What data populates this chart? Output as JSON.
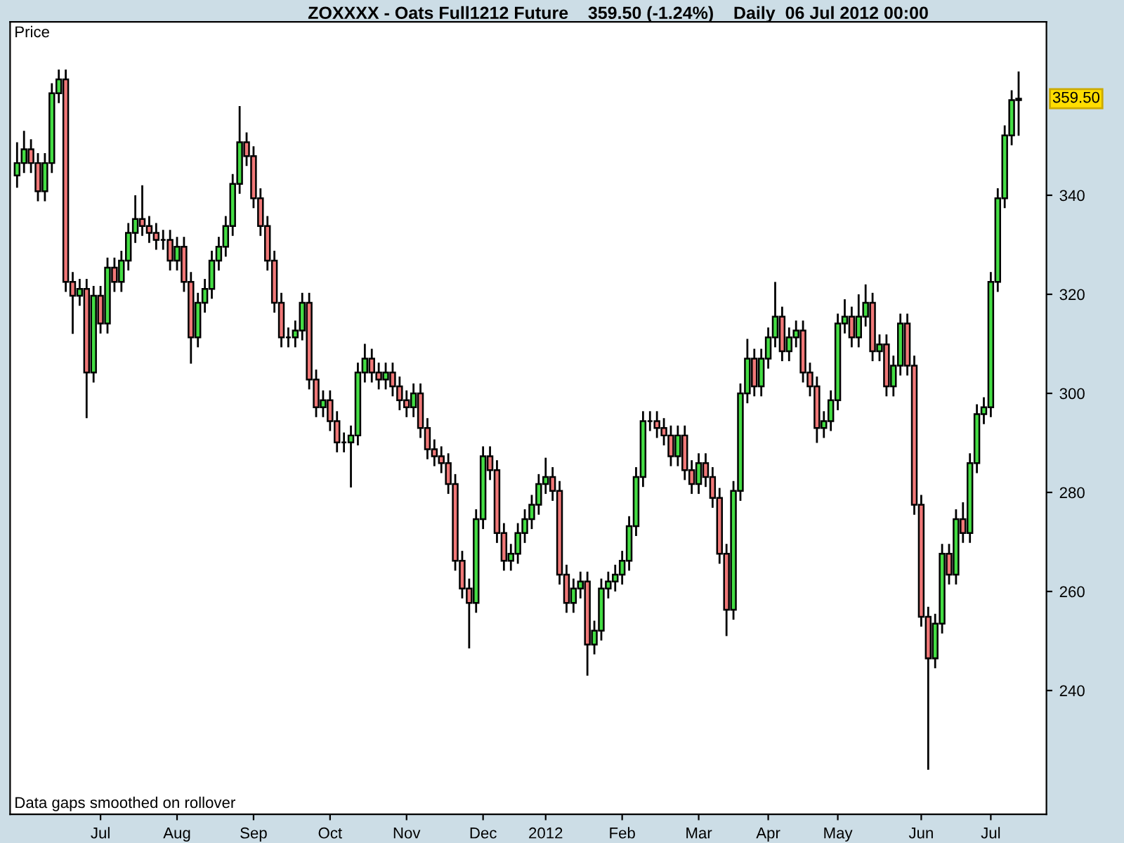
{
  "chart_data": {
    "type": "candlestick",
    "title": "ZOXXXX - Oats Full1212 Future    359.50 (-1.24%)    Daily  06 Jul 2012 00:00",
    "ylabel": "Price",
    "annotations": [
      "Data gaps smoothed on rollover",
      "359.50"
    ],
    "categories": [
      null,
      null,
      null,
      null,
      null,
      null,
      null,
      null,
      null,
      null,
      null,
      null,
      "Jul",
      null,
      null,
      null,
      null,
      null,
      null,
      null,
      null,
      null,
      null,
      "Aug",
      null,
      null,
      null,
      null,
      null,
      null,
      null,
      null,
      null,
      null,
      "Sep",
      null,
      null,
      null,
      null,
      null,
      null,
      null,
      null,
      null,
      null,
      "Oct",
      null,
      null,
      null,
      null,
      null,
      null,
      null,
      null,
      null,
      null,
      "Nov",
      null,
      null,
      null,
      null,
      null,
      null,
      null,
      null,
      null,
      null,
      "Dec",
      null,
      null,
      null,
      null,
      null,
      null,
      null,
      null,
      "2012",
      null,
      null,
      null,
      null,
      null,
      null,
      null,
      null,
      null,
      null,
      "Feb",
      null,
      null,
      null,
      null,
      null,
      null,
      null,
      null,
      null,
      null,
      "Mar",
      null,
      null,
      null,
      null,
      null,
      null,
      null,
      null,
      null,
      "Apr",
      null,
      null,
      null,
      null,
      null,
      null,
      null,
      null,
      null,
      "May",
      null,
      null,
      null,
      null,
      null,
      null,
      null,
      null,
      null,
      null,
      null,
      "Jun",
      null,
      null,
      null,
      null,
      null,
      null,
      null,
      null,
      null,
      "Jul",
      null,
      null,
      null,
      null
    ],
    "ohlc": [
      [
        344.0,
        350.7,
        341.5,
        346.5
      ],
      [
        346.5,
        353.0,
        344.5,
        349.3
      ],
      [
        349.3,
        351.3,
        344.5,
        346.5
      ],
      [
        346.5,
        348.5,
        338.8,
        340.8
      ],
      [
        340.8,
        348.5,
        338.8,
        346.5
      ],
      [
        346.5,
        362.6,
        344.5,
        360.6
      ],
      [
        360.6,
        365.4,
        358.6,
        363.4
      ],
      [
        363.4,
        365.4,
        320.5,
        322.5
      ],
      [
        322.5,
        324.5,
        312.0,
        319.7
      ],
      [
        319.7,
        323.1,
        317.7,
        321.1
      ],
      [
        321.1,
        323.1,
        295.0,
        304.2
      ],
      [
        304.2,
        321.7,
        302.2,
        319.7
      ],
      [
        319.7,
        321.7,
        312.1,
        314.1
      ],
      [
        314.1,
        327.4,
        312.1,
        325.4
      ],
      [
        325.4,
        327.4,
        320.5,
        322.5
      ],
      [
        322.5,
        328.8,
        320.5,
        326.8
      ],
      [
        326.8,
        334.4,
        324.8,
        332.4
      ],
      [
        332.4,
        340.0,
        330.4,
        335.2
      ],
      [
        335.2,
        342.0,
        331.8,
        333.8
      ],
      [
        333.8,
        335.8,
        330.4,
        332.4
      ],
      [
        332.4,
        334.4,
        329.0,
        331.0
      ],
      [
        331.0,
        333.0,
        329.0,
        331.0
      ],
      [
        331.0,
        333.0,
        324.8,
        326.8
      ],
      [
        326.8,
        331.6,
        324.8,
        329.6
      ],
      [
        329.6,
        331.6,
        320.5,
        322.5
      ],
      [
        322.5,
        324.5,
        306.0,
        311.3
      ],
      [
        311.3,
        320.3,
        309.3,
        318.3
      ],
      [
        318.3,
        323.1,
        316.3,
        321.1
      ],
      [
        321.1,
        328.8,
        319.1,
        326.8
      ],
      [
        326.8,
        331.6,
        324.8,
        329.6
      ],
      [
        329.6,
        335.8,
        327.6,
        333.8
      ],
      [
        333.8,
        344.3,
        331.8,
        342.3
      ],
      [
        342.3,
        358.0,
        340.3,
        350.7
      ],
      [
        350.7,
        352.7,
        345.9,
        347.9
      ],
      [
        347.9,
        349.9,
        337.4,
        339.4
      ],
      [
        339.4,
        341.4,
        331.8,
        333.8
      ],
      [
        333.8,
        335.8,
        324.8,
        326.8
      ],
      [
        326.8,
        328.8,
        316.3,
        318.3
      ],
      [
        318.3,
        320.3,
        309.3,
        311.3
      ],
      [
        311.3,
        313.3,
        309.3,
        311.3
      ],
      [
        311.3,
        314.7,
        309.3,
        312.7
      ],
      [
        312.7,
        320.3,
        310.7,
        318.3
      ],
      [
        318.3,
        320.3,
        300.8,
        302.8
      ],
      [
        302.8,
        304.8,
        295.2,
        297.2
      ],
      [
        297.2,
        300.6,
        295.2,
        298.6
      ],
      [
        298.6,
        300.6,
        292.4,
        294.4
      ],
      [
        294.4,
        296.4,
        288.1,
        290.1
      ],
      [
        290.1,
        292.1,
        288.1,
        290.1
      ],
      [
        290.1,
        293.5,
        281.0,
        291.5
      ],
      [
        291.5,
        306.2,
        289.5,
        304.2
      ],
      [
        304.2,
        310.0,
        302.2,
        307.0
      ],
      [
        307.0,
        309.0,
        302.2,
        304.2
      ],
      [
        304.2,
        306.2,
        300.8,
        302.8
      ],
      [
        302.8,
        306.2,
        300.8,
        304.2
      ],
      [
        304.2,
        306.2,
        299.4,
        301.4
      ],
      [
        301.4,
        303.4,
        296.6,
        298.6
      ],
      [
        298.6,
        300.6,
        295.2,
        297.2
      ],
      [
        297.2,
        302.0,
        295.2,
        300.0
      ],
      [
        300.0,
        302.0,
        291.0,
        293.0
      ],
      [
        293.0,
        295.0,
        286.7,
        288.7
      ],
      [
        288.7,
        290.7,
        285.3,
        287.3
      ],
      [
        287.3,
        289.3,
        283.9,
        285.9
      ],
      [
        285.9,
        287.9,
        279.7,
        281.7
      ],
      [
        281.7,
        283.7,
        264.2,
        266.2
      ],
      [
        266.2,
        268.2,
        258.6,
        260.6
      ],
      [
        260.6,
        262.6,
        248.5,
        257.7
      ],
      [
        257.7,
        276.6,
        255.7,
        274.6
      ],
      [
        274.6,
        289.3,
        272.6,
        287.3
      ],
      [
        287.3,
        289.3,
        282.5,
        284.5
      ],
      [
        284.5,
        286.5,
        269.8,
        271.8
      ],
      [
        271.8,
        273.8,
        264.2,
        266.2
      ],
      [
        266.2,
        269.6,
        264.2,
        267.6
      ],
      [
        267.6,
        273.8,
        265.6,
        271.8
      ],
      [
        271.8,
        276.6,
        269.8,
        274.6
      ],
      [
        274.6,
        279.5,
        272.6,
        277.5
      ],
      [
        277.5,
        283.7,
        275.5,
        281.7
      ],
      [
        281.7,
        287.0,
        279.7,
        283.1
      ],
      [
        283.1,
        285.1,
        278.3,
        280.3
      ],
      [
        280.3,
        282.3,
        261.4,
        263.4
      ],
      [
        263.4,
        265.4,
        255.7,
        257.7
      ],
      [
        257.7,
        262.6,
        255.7,
        260.6
      ],
      [
        260.6,
        264.0,
        258.6,
        262.0
      ],
      [
        262.0,
        264.0,
        243.0,
        249.3
      ],
      [
        249.3,
        254.1,
        247.3,
        252.1
      ],
      [
        252.1,
        262.6,
        250.1,
        260.6
      ],
      [
        260.6,
        264.0,
        258.6,
        262.0
      ],
      [
        262.0,
        265.4,
        260.0,
        263.4
      ],
      [
        263.4,
        268.2,
        261.4,
        266.2
      ],
      [
        266.2,
        275.2,
        264.2,
        273.2
      ],
      [
        273.2,
        285.1,
        271.2,
        283.1
      ],
      [
        283.1,
        296.4,
        281.1,
        294.4
      ],
      [
        294.4,
        296.4,
        292.4,
        294.4
      ],
      [
        294.4,
        296.4,
        291.0,
        293.0
      ],
      [
        293.0,
        295.0,
        289.5,
        291.5
      ],
      [
        291.5,
        293.5,
        285.3,
        287.3
      ],
      [
        287.3,
        293.5,
        285.3,
        291.5
      ],
      [
        291.5,
        293.5,
        282.5,
        284.5
      ],
      [
        284.5,
        286.5,
        279.7,
        281.7
      ],
      [
        281.7,
        287.9,
        279.7,
        285.9
      ],
      [
        285.9,
        287.9,
        281.1,
        283.1
      ],
      [
        283.1,
        285.1,
        276.9,
        278.9
      ],
      [
        278.9,
        280.9,
        265.6,
        267.6
      ],
      [
        267.6,
        269.6,
        251.0,
        256.3
      ],
      [
        256.3,
        282.3,
        254.3,
        280.3
      ],
      [
        280.3,
        302.0,
        278.3,
        300.0
      ],
      [
        300.0,
        311.0,
        298.0,
        307.0
      ],
      [
        307.0,
        309.0,
        299.4,
        301.4
      ],
      [
        301.4,
        309.0,
        299.4,
        307.0
      ],
      [
        307.0,
        313.3,
        305.0,
        311.3
      ],
      [
        311.3,
        322.5,
        309.3,
        315.5
      ],
      [
        315.5,
        317.5,
        306.5,
        308.5
      ],
      [
        308.5,
        313.3,
        306.5,
        311.3
      ],
      [
        311.3,
        314.7,
        309.3,
        312.7
      ],
      [
        312.7,
        314.7,
        302.2,
        304.2
      ],
      [
        304.2,
        306.2,
        299.4,
        301.4
      ],
      [
        301.4,
        303.4,
        290.0,
        293.0
      ],
      [
        293.0,
        296.4,
        291.0,
        294.4
      ],
      [
        294.4,
        300.6,
        292.4,
        298.6
      ],
      [
        298.6,
        316.1,
        296.6,
        314.1
      ],
      [
        314.1,
        319.0,
        312.1,
        315.5
      ],
      [
        315.5,
        317.5,
        309.3,
        311.3
      ],
      [
        311.3,
        320.0,
        309.3,
        315.5
      ],
      [
        315.5,
        322.0,
        313.5,
        318.3
      ],
      [
        318.3,
        320.3,
        306.5,
        308.5
      ],
      [
        308.5,
        311.9,
        306.5,
        309.9
      ],
      [
        309.9,
        311.9,
        299.4,
        301.4
      ],
      [
        301.4,
        307.6,
        299.4,
        305.6
      ],
      [
        305.6,
        316.1,
        303.6,
        314.1
      ],
      [
        314.1,
        316.1,
        303.6,
        305.6
      ],
      [
        305.6,
        307.6,
        275.5,
        277.5
      ],
      [
        277.5,
        279.5,
        252.9,
        254.9
      ],
      [
        254.9,
        256.9,
        224.0,
        246.5
      ],
      [
        246.5,
        255.5,
        244.5,
        253.5
      ],
      [
        253.5,
        269.6,
        251.5,
        267.6
      ],
      [
        267.6,
        269.6,
        261.4,
        263.4
      ],
      [
        263.4,
        276.6,
        261.4,
        274.6
      ],
      [
        274.6,
        278.0,
        269.8,
        271.8
      ],
      [
        271.8,
        287.9,
        269.8,
        285.9
      ],
      [
        285.9,
        297.8,
        283.9,
        295.8
      ],
      [
        295.8,
        299.2,
        293.8,
        297.2
      ],
      [
        297.2,
        324.5,
        295.2,
        322.5
      ],
      [
        322.5,
        341.4,
        320.5,
        339.4
      ],
      [
        339.4,
        354.1,
        337.4,
        352.1
      ],
      [
        352.1,
        361.2,
        350.1,
        359.2
      ],
      [
        359.2,
        365.0,
        352.0,
        359.5
      ]
    ],
    "colors": [
      "#44dd44",
      "#44dd44",
      "#f07878",
      "#f07878",
      "#44dd44",
      "#44dd44",
      "#44dd44",
      "#f07878",
      "#f07878",
      "#44dd44",
      "#f07878",
      "#44dd44",
      "#f07878",
      "#44dd44",
      "#f07878",
      "#44dd44",
      "#44dd44",
      "#44dd44",
      "#f07878",
      "#f07878",
      "#f07878",
      "#000000",
      "#f07878",
      "#44dd44",
      "#f07878",
      "#f07878",
      "#44dd44",
      "#44dd44",
      "#44dd44",
      "#44dd44",
      "#44dd44",
      "#44dd44",
      "#44dd44",
      "#f07878",
      "#f07878",
      "#f07878",
      "#f07878",
      "#f07878",
      "#f07878",
      "#000000",
      "#44dd44",
      "#44dd44",
      "#f07878",
      "#f07878",
      "#44dd44",
      "#f07878",
      "#f07878",
      "#000000",
      "#44dd44",
      "#44dd44",
      "#44dd44",
      "#f07878",
      "#f07878",
      "#44dd44",
      "#f07878",
      "#f07878",
      "#f07878",
      "#44dd44",
      "#f07878",
      "#f07878",
      "#f07878",
      "#f07878",
      "#f07878",
      "#f07878",
      "#f07878",
      "#f07878",
      "#44dd44",
      "#44dd44",
      "#f07878",
      "#f07878",
      "#f07878",
      "#44dd44",
      "#44dd44",
      "#44dd44",
      "#44dd44",
      "#44dd44",
      "#44dd44",
      "#f07878",
      "#f07878",
      "#f07878",
      "#44dd44",
      "#44dd44",
      "#f07878",
      "#44dd44",
      "#44dd44",
      "#44dd44",
      "#44dd44",
      "#44dd44",
      "#44dd44",
      "#44dd44",
      "#44dd44",
      "#000000",
      "#f07878",
      "#f07878",
      "#f07878",
      "#44dd44",
      "#f07878",
      "#f07878",
      "#44dd44",
      "#f07878",
      "#f07878",
      "#f07878",
      "#f07878",
      "#44dd44",
      "#44dd44",
      "#44dd44",
      "#f07878",
      "#44dd44",
      "#44dd44",
      "#44dd44",
      "#f07878",
      "#44dd44",
      "#44dd44",
      "#f07878",
      "#f07878",
      "#f07878",
      "#44dd44",
      "#44dd44",
      "#44dd44",
      "#44dd44",
      "#f07878",
      "#44dd44",
      "#44dd44",
      "#f07878",
      "#44dd44",
      "#f07878",
      "#44dd44",
      "#44dd44",
      "#f07878",
      "#f07878",
      "#f07878",
      "#f07878",
      "#44dd44",
      "#44dd44",
      "#f07878",
      "#44dd44",
      "#f07878",
      "#44dd44",
      "#44dd44",
      "#44dd44",
      "#44dd44",
      "#44dd44",
      "#44dd44",
      "#44dd44",
      "#44dd44"
    ],
    "ylim": [
      215,
      375
    ],
    "yticks": [
      240,
      260,
      280,
      300,
      320,
      340
    ]
  }
}
